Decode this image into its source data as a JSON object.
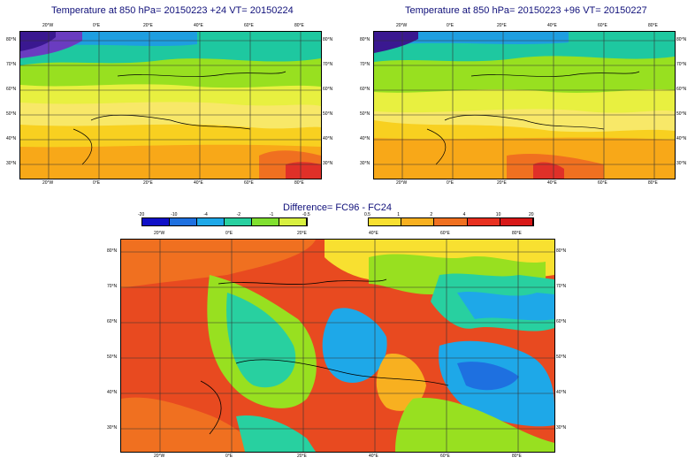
{
  "panels": [
    {
      "title": "Temperature at 850 hPa= 20150223 +24 VT= 20150224",
      "top_lon": [
        "20°W",
        "0°E",
        "20°E",
        "40°E",
        "60°E",
        "80°E"
      ],
      "bottom_lon": [
        "20°W",
        "0°E",
        "20°E",
        "40°E",
        "60°E",
        "80°E"
      ],
      "lat": [
        "80°N",
        "70°N",
        "60°N",
        "50°N",
        "40°N",
        "30°N"
      ]
    },
    {
      "title": "Temperature at 850 hPa= 20150223 +96 VT= 20150227",
      "top_lon": [
        "20°W",
        "0°E",
        "20°E",
        "40°E",
        "60°E",
        "80°E"
      ],
      "bottom_lon": [
        "20°W",
        "0°E",
        "20°E",
        "40°E",
        "60°E",
        "80°E"
      ],
      "lat": [
        "80°N",
        "70°N",
        "60°N",
        "50°N",
        "40°N",
        "30°N"
      ]
    }
  ],
  "difference": {
    "title": "Difference= FC96 - FC24",
    "top_lon": [
      "20°W",
      "0°E",
      "20°E",
      "40°E",
      "60°E",
      "80°E"
    ],
    "bottom_lon": [
      "20°W",
      "0°E",
      "20°E",
      "40°E",
      "60°E",
      "80°E"
    ],
    "lat": [
      "80°N",
      "70°N",
      "60°N",
      "50°N",
      "40°N",
      "30°N"
    ]
  },
  "colorbar_negative": {
    "ticks": [
      "-20",
      "-10",
      "-4",
      "-2",
      "-1",
      "-0.5"
    ],
    "colors": [
      "#1010c8",
      "#1e70e0",
      "#1ea8e8",
      "#28d0a0",
      "#80e030",
      "#d8f040"
    ]
  },
  "colorbar_positive": {
    "ticks": [
      "0.5",
      "1",
      "2",
      "4",
      "10",
      "20"
    ],
    "colors": [
      "#f8e030",
      "#f8b020",
      "#f07020",
      "#e83020",
      "#d81818"
    ]
  }
}
